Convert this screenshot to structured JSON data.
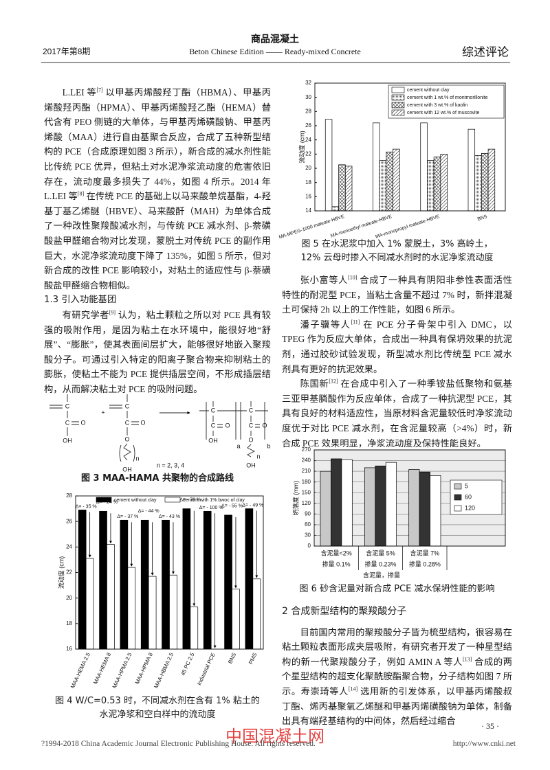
{
  "header": {
    "journal": "商品混凝土",
    "issue": "2017年第8期",
    "subtitle": "Beton Chinese Edition —— Ready-mixed Concrete",
    "column": "综述评论"
  },
  "left_text": [
    {
      "parts": [
        "L.LEI 等",
        "[7]",
        " 以甲基丙烯酸羟丁酯（HBMA）、甲基丙烯酸羟丙酯（HPMA）、甲基丙烯酸羟乙酯（HEMA）替代含有 PEO 侧链的大单体，与甲基丙烯磺酸钠、甲基丙烯酸（MAA）进行自由基聚合反应，合成了五种新型结构的 PCE（合成原理如图 3 所示），新合成的减水剂性能比传统 PCE 优异，但粘土对水泥净浆流动度的危害依旧存在，流动度最多损失了 44%，如图 4 所示。2014 年 L.LEI 等",
        "[8]",
        " 在传统 PCE 的基础上以马来酸单烷基酯，4-羟基丁基乙烯醚（HBVE）、马来酸酐（MAH）为单体合成了一种改性聚羧酸减水剂，与传统 PCE 减水剂、β-萘磺酸盐甲醛缩合物对比发现，蒙脱土对传统 PCE 的副作用巨大，水泥净浆流动度下降了 135%，如图 5 所示，但对新合成的改性 PCE 影响较小，对粘土的适应性与 β-萘磺酸盐甲醛缩合物相似。"
      ]
    },
    {
      "heading": "1.3 引入功能基团"
    },
    {
      "parts": [
        "有研究学者",
        "[9]",
        " 认为，粘土颗粒之所以对 PCE 具有较强的吸附作用，是因为粘土在水环境中，能很好地“舒展”、“膨胀”，使其表面间层扩大，能够很好地嵌入聚羧酸分子。可通过引入特定的阳离子聚合物来抑制粘土的膨胀，使粘土不能为 PCE 提供插层空间，不形成插层结构，从而解决粘土对 PCE 的吸附问题。"
      ]
    }
  ],
  "figure3": {
    "labels": [
      "C",
      "C",
      "O",
      "OH",
      "+",
      "C",
      "C",
      "O",
      "O",
      "n",
      "OH",
      "C",
      "C",
      "O",
      "OH",
      "a",
      "C",
      "C",
      "O",
      "O",
      "n",
      "OH",
      "b",
      "n = 2, 3, 4"
    ],
    "caption": "图 3  MAA-HAMA 共聚物的合成路线"
  },
  "right_text": [
    {
      "parts": [
        "张小富等人",
        "[10]",
        " 合成了一种具有阴阳非参性表面活性特性的耐泥型 PCE，当粘土含量不超过 7% 时，新拌混凝土可保持 2h 以上的工作性能，如图 6 所示。"
      ]
    },
    {
      "parts": [
        "潘子骥等人",
        "[11]",
        " 在 PCE 分子骨架中引入 DMC，以 TPEG 作为反应大单体，合成出一种具有保坍效果的抗泥剂，通过胶砂试验发现，新型减水剂比传统型 PCE 减水剂具有更好的抗泥效果。"
      ]
    },
    {
      "parts": [
        "陈国新",
        "[12]",
        " 在合成中引入了一种季铵盐低聚物和氨基三亚甲基膦酸作为反应单体，合成了一种抗泥型 PCE，其具有良好的材料适应性，当原材料含泥量较低时净浆流动度优于对比 PCE 减水剂，在含泥量较高（>4%）时，新合成 PCE 效果明显，净浆流动度及保持性能良好。"
      ]
    }
  ],
  "section2": {
    "heading": "2  合成新型结构的聚羧酸分子",
    "parts": [
      "目前国内常用的聚羧酸分子皆为梳型结构，很容易在粘土颗粒表面形成夹层吸附，有研究者开发了一种星型结构的新一代聚羧酸分子，例如 AMIN A 等人",
      "[13]",
      " 合成的两个星型结构的超支化聚酰胺酯聚合物，分子结构如图 7 所示。寿崇琦等人",
      "[14]",
      " 选用新的引发体系，以甲基丙烯酸叔丁酯、烯丙基聚氧乙烯醚和甲基丙烯磺酸钠为单体，制备出具有端羟基结构的中间体，然后经过缩合"
    ]
  },
  "chart_data": [
    {
      "type": "bar",
      "ylabel": "流动度 (cm)",
      "categories": [
        "MA-MPEG-1000 maleate-HBVE",
        "MA-monoethyl maleate-HBVE",
        "MA-monopropyl maleate-HBVE",
        "BNS"
      ],
      "series": [
        {
          "name": "cement without clay",
          "color": "#ffffff",
          "values": [
            26.9,
            26.4,
            26.4,
            25.5
          ]
        },
        {
          "name": "cement with 1 wt.% of montmorillonite",
          "color": "#ffffff",
          "pattern": "dots",
          "values": [
            14.6,
            21.1,
            21.1,
            21.8
          ]
        },
        {
          "name": "cement with 3 wt.% of kaolin",
          "color": "#ffffff",
          "pattern": "cross",
          "values": [
            20.5,
            22.3,
            21.6,
            22.1
          ]
        },
        {
          "name": "cement with 12 wt.% of muscovite",
          "color": "#ffffff",
          "pattern": "diagonal",
          "values": [
            20.3,
            22.7,
            22.0,
            22.7
          ]
        }
      ],
      "ylim": [
        14,
        32
      ],
      "yticks": [
        14,
        16,
        18,
        20,
        22,
        24,
        26,
        28,
        30,
        32
      ],
      "grid": false,
      "legend": "top-right",
      "caption": [
        "图 5  在水泥浆中加入 1% 蒙脱土，3% 高岭土，",
        "12% 云母时掺入不同减水剂时的水泥净浆流动度"
      ]
    },
    {
      "type": "bar",
      "ylabel": "流动度 (cm)",
      "categories": [
        "MAA-HEMA 2.5",
        "MAA-HEMA 8",
        "MAA-HPMA 2.5",
        "MAA-HPMA 8",
        "MAA-HBMA 2.5",
        "45 PC 2.5",
        "Industrial PCE",
        "BNS",
        "PMS"
      ],
      "series": [
        {
          "name": "cement without clay",
          "color": "#000000",
          "values": [
            26.9,
            26.8,
            26.1,
            26.1,
            26.1,
            27.0,
            26.8,
            26.5,
            27.0
          ]
        },
        {
          "name": "cement with 1% bwoc of clay",
          "color": "#ffffff",
          "values": [
            23.1,
            24.2,
            22.4,
            21.7,
            21.8,
            19.3,
            16.0,
            20.7,
            21.5
          ]
        }
      ],
      "annotations": [
        "Δ= - 35 %",
        "Δ= - 24 %",
        "Δ= - 37 %",
        "Δ= - 44 %",
        "Δ= - 43 %",
        "Δ= - 70 %",
        "Δ= - 100 %",
        "Δ= - 55 %",
        "Δ= - 49 %"
      ],
      "ylim": [
        16,
        28
      ],
      "yticks": [
        16,
        18,
        20,
        22,
        24,
        26,
        28
      ],
      "grid": false,
      "legend": "top",
      "caption": [
        "图 4  W/C=0.53 时，不同减水剂在含有 1% 粘土的",
        "水泥净浆和空白样中的流动度"
      ]
    },
    {
      "type": "bar",
      "ylabel": "坍落度 (mm)",
      "xlabel": "含泥量，掺量",
      "categories": [
        [
          "含泥量<2%",
          "掺量 0.1%"
        ],
        [
          "含泥量 5%",
          "掺量 0.23%"
        ],
        [
          "含泥量 7%",
          "掺量 0.28%"
        ]
      ],
      "series": [
        {
          "name": "5",
          "color": "#c8c8c8",
          "values": [
            210,
            220,
            215
          ]
        },
        {
          "name": "60",
          "color": "#333333",
          "values": [
            245,
            225,
            208
          ]
        },
        {
          "name": "120",
          "color": "#ffffff",
          "values": [
            243,
            235,
            198
          ]
        }
      ],
      "ylim": [
        0,
        270
      ],
      "yticks": [
        0,
        30,
        60,
        90,
        120,
        150,
        180,
        210,
        240,
        270
      ],
      "grid": true,
      "legend": "right",
      "caption": [
        "图 6  砂含泥量对新合成 PCE 减水保坍性能的影响"
      ]
    }
  ],
  "footer": {
    "copyright": "?1994-2018 China Academic Journal Electronic Publishing House. All rights reserved.",
    "url": "http://www.cnki.net",
    "page": "· 35 ·",
    "watermark": "中国混凝土网"
  }
}
